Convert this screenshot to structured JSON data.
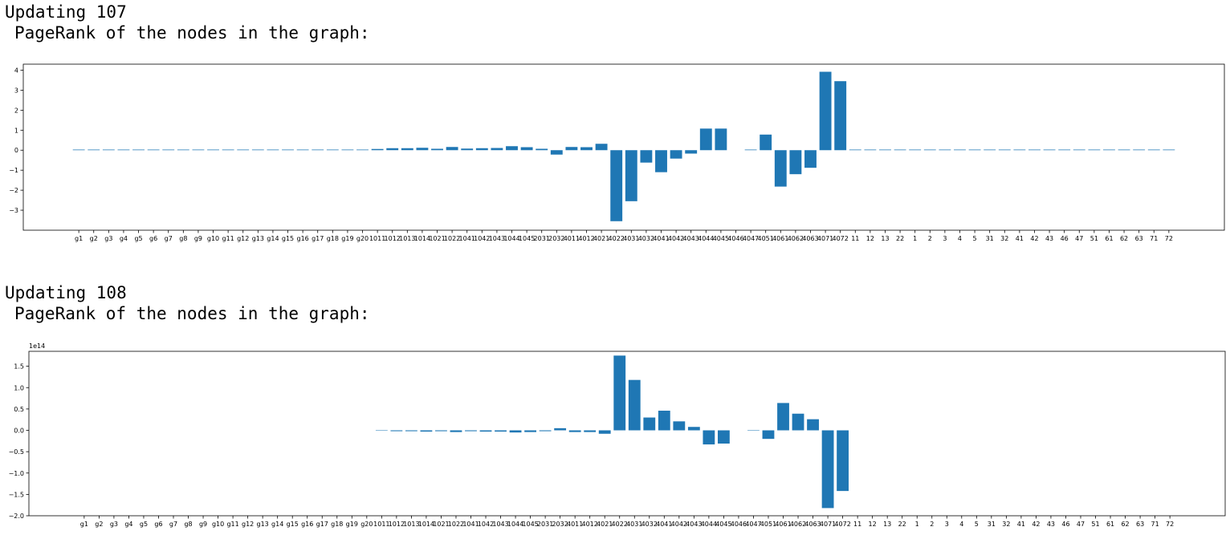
{
  "outputs": [
    {
      "heading": "Updating 107",
      "subheading": "PageRank of the nodes in the graph:"
    },
    {
      "heading": "Updating 108",
      "subheading": "PageRank of the nodes in the graph:"
    }
  ],
  "chart_data": [
    {
      "type": "bar",
      "title": "",
      "xlabel": "",
      "ylabel": "",
      "ylim": [
        -4.0,
        4.3
      ],
      "yticks": [
        -3,
        -2,
        -1,
        0,
        1,
        2,
        3,
        4
      ],
      "ytick_labels": [
        "−3",
        "−2",
        "−1",
        "0",
        "1",
        "2",
        "3",
        "4"
      ],
      "offset_label": "",
      "bar_color": "#1f77b4",
      "categories": [
        "g1",
        "g2",
        "g3",
        "g4",
        "g5",
        "g6",
        "g7",
        "g8",
        "g9",
        "g10",
        "g11",
        "g12",
        "g13",
        "g14",
        "g15",
        "g16",
        "g17",
        "g18",
        "g19",
        "g20",
        "1011",
        "1012",
        "1013",
        "1014",
        "1021",
        "1022",
        "1041",
        "1042",
        "1043",
        "1044",
        "1045",
        "2031",
        "2032",
        "4011",
        "4012",
        "4021",
        "4022",
        "4031",
        "4032",
        "4041",
        "4042",
        "4043",
        "4044",
        "4045",
        "4046",
        "4047",
        "4051",
        "4061",
        "4062",
        "4063",
        "4071",
        "4072",
        "11",
        "12",
        "13",
        "22",
        "1",
        "2",
        "3",
        "4",
        "5",
        "31",
        "32",
        "41",
        "42",
        "43",
        "46",
        "47",
        "51",
        "61",
        "62",
        "63",
        "71",
        "72"
      ],
      "tick_labels": [
        "g1",
        "g2",
        "g3",
        "g4",
        "g5",
        "g6",
        "g7",
        "g8",
        "g9",
        "g10",
        "g11",
        "g12",
        "g13",
        "g14",
        "g15",
        "g16",
        "g17",
        "g18",
        "g19",
        "g20",
        "1011",
        "1012",
        "1013",
        "1014",
        "1021",
        "1022",
        "1041",
        "1042",
        "1043",
        "1044",
        "1045",
        "2031",
        "2032",
        "4011",
        "4012",
        "4021",
        "4022",
        "4031",
        "4032",
        "4041",
        "4042",
        "4043",
        "4044",
        "4045",
        "4046",
        "4047",
        "4051",
        "4061",
        "4062",
        "4063",
        "4071",
        "4072",
        "11",
        "12",
        "13",
        "22",
        "1",
        "2",
        "3",
        "4",
        "5",
        "31",
        "32",
        "41",
        "42",
        "43",
        "46",
        "47",
        "51",
        "61",
        "62",
        "63",
        "71",
        "72"
      ],
      "values": [
        0.03,
        0.03,
        0.03,
        0.03,
        0.03,
        0.03,
        0.03,
        0.03,
        0.03,
        0.03,
        0.03,
        0.03,
        0.03,
        0.03,
        0.03,
        0.03,
        0.03,
        0.03,
        0.03,
        0.03,
        0.06,
        0.1,
        0.1,
        0.12,
        0.07,
        0.16,
        0.08,
        0.1,
        0.11,
        0.2,
        0.15,
        0.07,
        -0.22,
        0.16,
        0.15,
        0.32,
        -3.55,
        -2.55,
        -0.62,
        -1.1,
        -0.42,
        -0.17,
        1.08,
        1.08,
        0.0,
        0.03,
        0.78,
        -1.82,
        -1.2,
        -0.88,
        3.92,
        3.45,
        0.03,
        0.03,
        0.03,
        0.03,
        0.03,
        0.03,
        0.03,
        0.03,
        0.03,
        0.03,
        0.03,
        0.03,
        0.03,
        0.03,
        0.03,
        0.03,
        0.03,
        0.03,
        0.03,
        0.03,
        0.03,
        0.03
      ]
    },
    {
      "type": "bar",
      "title": "",
      "xlabel": "",
      "ylabel": "",
      "ylim": [
        -2.0,
        1.85
      ],
      "yticks": [
        -2.0,
        -1.5,
        -1.0,
        -0.5,
        0.0,
        0.5,
        1.0,
        1.5
      ],
      "ytick_labels": [
        "−2.0",
        "−1.5",
        "−1.0",
        "−0.5",
        "0.0",
        "0.5",
        "1.0",
        "1.5"
      ],
      "offset_label": "1e14",
      "bar_color": "#1f77b4",
      "categories": [
        "g1",
        "g2",
        "g3",
        "g4",
        "g5",
        "g6",
        "g7",
        "g8",
        "g9",
        "g10",
        "g11",
        "g12",
        "g13",
        "g14",
        "g15",
        "g16",
        "g17",
        "g18",
        "g19",
        "g20",
        "1011",
        "1012",
        "1013",
        "1014",
        "1021",
        "1022",
        "1041",
        "1042",
        "1043",
        "1044",
        "1045",
        "2031",
        "2032",
        "4011",
        "4012",
        "4021",
        "4022",
        "4031",
        "4032",
        "4041",
        "4042",
        "4043",
        "4044",
        "4045",
        "4046",
        "4047",
        "4051",
        "4061",
        "4062",
        "4063",
        "4071",
        "4072",
        "11",
        "12",
        "13",
        "22",
        "1",
        "2",
        "3",
        "4",
        "5",
        "31",
        "32",
        "41",
        "42",
        "43",
        "46",
        "47",
        "51",
        "61",
        "62",
        "63",
        "71",
        "72"
      ],
      "tick_labels": [
        "g1",
        "g2",
        "g3",
        "g4",
        "g5",
        "g6",
        "g7",
        "g8",
        "g9",
        "g10",
        "g11",
        "g12",
        "g13",
        "g14",
        "g15",
        "g16",
        "g17",
        "g18",
        "g19",
        "g20",
        "1011",
        "1012",
        "1013",
        "1014",
        "1021",
        "1022",
        "1041",
        "1042",
        "1043",
        "1044",
        "1045",
        "2031",
        "2032",
        "4011",
        "4012",
        "4021",
        "4022",
        "4031",
        "4032",
        "4041",
        "4042",
        "4043",
        "4044",
        "4045",
        "4046",
        "4047",
        "4051",
        "4061",
        "4062",
        "4063",
        "4071",
        "4072",
        "11",
        "12",
        "13",
        "22",
        "1",
        "2",
        "3",
        "4",
        "5",
        "31",
        "32",
        "41",
        "42",
        "43",
        "46",
        "47",
        "51",
        "61",
        "62",
        "63",
        "71",
        "72"
      ],
      "values": [
        0,
        0,
        0,
        0,
        0,
        0,
        0,
        0,
        0,
        0,
        0,
        0,
        0,
        0,
        0,
        0,
        0,
        0,
        0,
        0,
        -0.01,
        -0.02,
        -0.02,
        -0.03,
        -0.02,
        -0.04,
        -0.02,
        -0.03,
        -0.03,
        -0.05,
        -0.04,
        -0.02,
        0.05,
        -0.04,
        -0.04,
        -0.08,
        1.75,
        1.18,
        0.3,
        0.46,
        0.21,
        0.08,
        -0.33,
        -0.31,
        0.0,
        -0.01,
        -0.2,
        0.64,
        0.39,
        0.26,
        -1.82,
        -1.42,
        0,
        0,
        0,
        0,
        0,
        0,
        0,
        0,
        0,
        0,
        0,
        0,
        0,
        0,
        0,
        0,
        0,
        0,
        0,
        0,
        0,
        0
      ]
    }
  ]
}
